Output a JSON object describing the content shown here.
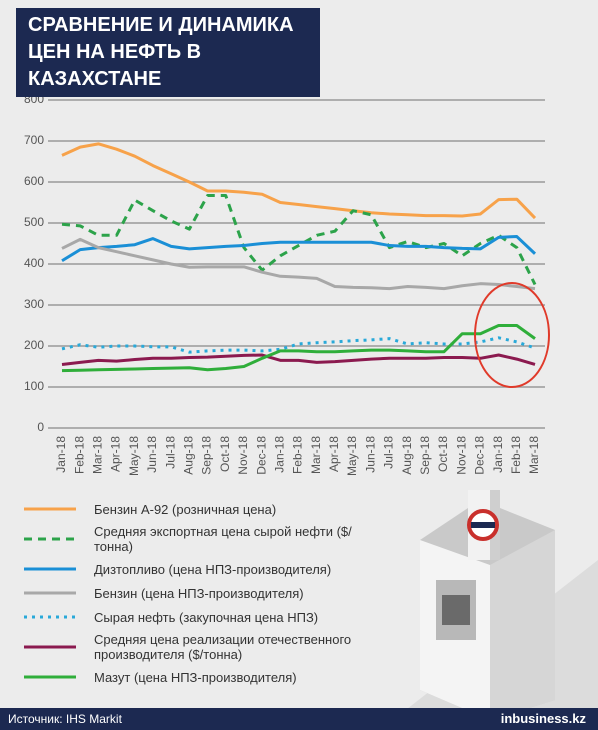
{
  "title": "СРАВНЕНИЕ И ДИНАМИКА ЦЕН НА НЕФТЬ В КАЗАХСТАНЕ",
  "chart_data": {
    "type": "line",
    "categories": [
      "Jan-18",
      "Feb-18",
      "Mar-18",
      "Apr-18",
      "May-18",
      "Jun-18",
      "Jul-18",
      "Aug-18",
      "Sep-18",
      "Oct-18",
      "Nov-18",
      "Dec-18",
      "Jan-18",
      "Feb-18",
      "Mar-18",
      "Apr-18",
      "May-18",
      "Jun-18",
      "Jul-18",
      "Aug-18",
      "Sep-18",
      "Oct-18",
      "Nov-18",
      "Dec-18",
      "Jan-18",
      "Feb-18",
      "Mar-18"
    ],
    "ylim": [
      0,
      800
    ],
    "yticks": [
      0,
      100,
      200,
      300,
      400,
      500,
      600,
      700,
      800
    ],
    "grid": true,
    "series": [
      {
        "name": "Бензин А-92 (розничная цена)",
        "color": "#f7a24a",
        "style": "solid",
        "values": [
          665,
          685,
          693,
          680,
          663,
          640,
          620,
          600,
          578,
          578,
          575,
          570,
          550,
          545,
          540,
          535,
          530,
          525,
          522,
          520,
          518,
          518,
          517,
          522,
          557,
          558,
          512
        ]
      },
      {
        "name": "Средняя экспортная цена сырой нефти ($/тонна)",
        "color": "#2ca34a",
        "style": "dashed",
        "values": [
          497,
          493,
          470,
          470,
          556,
          530,
          505,
          485,
          567,
          567,
          440,
          385,
          420,
          445,
          470,
          480,
          530,
          520,
          440,
          455,
          440,
          450,
          420,
          450,
          470,
          440,
          350
        ]
      },
      {
        "name": "Дизтопливо (цена НПЗ-производителя)",
        "color": "#1a8fd6",
        "style": "solid",
        "values": [
          408,
          435,
          440,
          443,
          447,
          462,
          443,
          437,
          440,
          443,
          445,
          450,
          453,
          453,
          453,
          453,
          453,
          453,
          445,
          443,
          443,
          440,
          438,
          437,
          465,
          467,
          425
        ]
      },
      {
        "name": "Бензин (цена НПЗ-производителя)",
        "color": "#a8a8a8",
        "style": "solid",
        "values": [
          438,
          460,
          440,
          430,
          420,
          410,
          400,
          392,
          393,
          393,
          393,
          380,
          370,
          368,
          365,
          345,
          343,
          342,
          340,
          345,
          343,
          340,
          347,
          352,
          350,
          345,
          340
        ]
      },
      {
        "name": "Сырая нефть (закупочная цена НПЗ)",
        "color": "#29a9d9",
        "style": "dotted",
        "values": [
          193,
          203,
          197,
          200,
          200,
          198,
          198,
          185,
          188,
          190,
          190,
          188,
          192,
          205,
          208,
          210,
          213,
          215,
          218,
          205,
          208,
          205,
          205,
          210,
          220,
          210,
          195
        ]
      },
      {
        "name": "Средняя цена реализации отечественного производителя ($/тонна)",
        "color": "#8b1a4f",
        "style": "solid",
        "values": [
          155,
          160,
          165,
          163,
          167,
          170,
          170,
          172,
          173,
          175,
          177,
          178,
          165,
          165,
          160,
          162,
          165,
          168,
          170,
          170,
          170,
          172,
          172,
          170,
          178,
          168,
          155
        ]
      },
      {
        "name": "Мазут (цена НПЗ-производителя)",
        "color": "#2fae3a",
        "style": "solid",
        "values": [
          140,
          141,
          142,
          143,
          144,
          145,
          146,
          147,
          142,
          145,
          150,
          170,
          188,
          188,
          186,
          186,
          188,
          190,
          190,
          188,
          186,
          186,
          230,
          230,
          250,
          250,
          218
        ]
      }
    ]
  },
  "source": "Источник: IHS Markit",
  "brand": "inbusiness.kz"
}
